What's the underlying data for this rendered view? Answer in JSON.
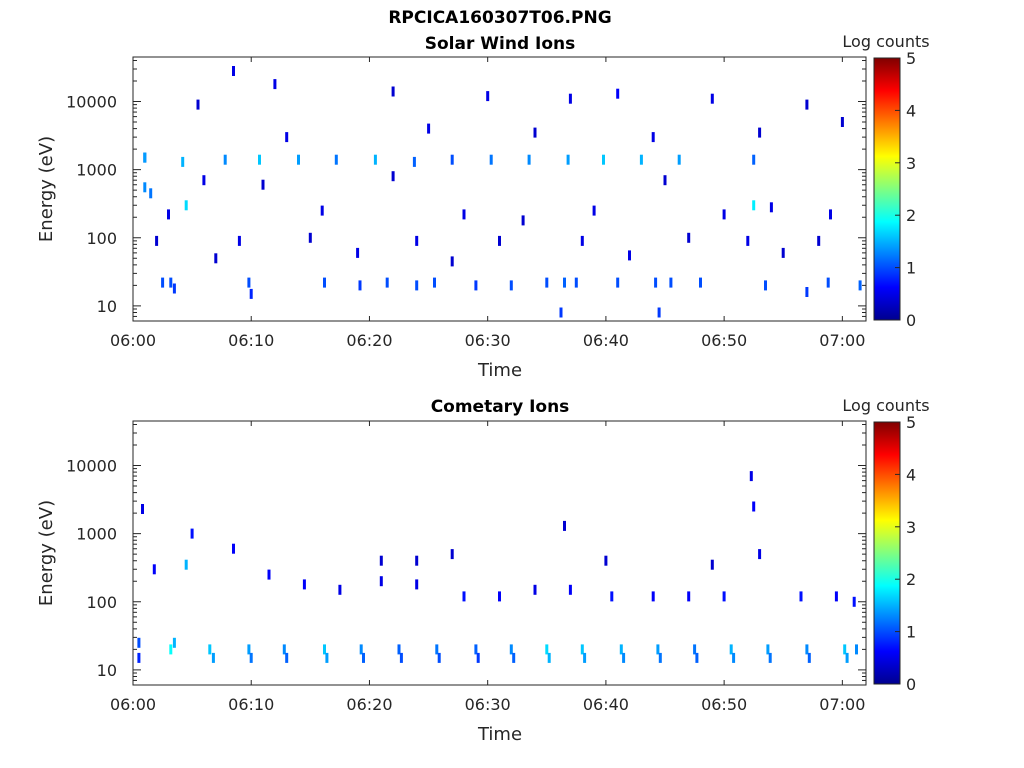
{
  "figure_title": "RPCICA160307T06.PNG",
  "chart_data": [
    {
      "type": "heatmap",
      "title": "Solar Wind Ions",
      "xlabel": "Time",
      "ylabel": "Energy (eV)",
      "x_unit": "minutes after 06:00",
      "xlim": [
        0,
        62
      ],
      "x_ticks": [
        0,
        10,
        20,
        30,
        40,
        50,
        60
      ],
      "x_tick_labels": [
        "06:00",
        "06:10",
        "06:20",
        "06:30",
        "06:40",
        "06:50",
        "07:00"
      ],
      "y_scale": "log",
      "ylim": [
        6,
        45000
      ],
      "y_ticks": [
        10,
        100,
        1000,
        10000
      ],
      "y_tick_labels": [
        "10",
        "100",
        "1000",
        "10000"
      ],
      "colorbar": {
        "label": "Log counts",
        "range": [
          0,
          5
        ],
        "ticks": [
          0,
          1,
          2,
          3,
          4,
          5
        ],
        "tick_labels": [
          "0",
          "1",
          "2",
          "3",
          "4",
          "5"
        ],
        "colormap": "jet"
      },
      "grid": false,
      "points": [
        [
          1,
          1500,
          1.0
        ],
        [
          1,
          1500,
          1.4
        ],
        [
          1,
          550,
          1.3
        ],
        [
          1.5,
          450,
          1.2
        ],
        [
          4.2,
          1300,
          1.5
        ],
        [
          4.5,
          300,
          1.7
        ],
        [
          7.8,
          1400,
          1.3
        ],
        [
          10.7,
          1400,
          1.6
        ],
        [
          14,
          1400,
          1.4
        ],
        [
          17.2,
          1400,
          1.2
        ],
        [
          20.5,
          1400,
          1.5
        ],
        [
          23.8,
          1300,
          1.1
        ],
        [
          27,
          1400,
          1.0
        ],
        [
          30.3,
          1400,
          1.2
        ],
        [
          33.5,
          1400,
          1.3
        ],
        [
          36.8,
          1400,
          1.4
        ],
        [
          39.8,
          1400,
          1.6
        ],
        [
          43,
          1400,
          1.5
        ],
        [
          46.2,
          1400,
          1.4
        ],
        [
          52.5,
          1400,
          1.1
        ],
        [
          52.5,
          300,
          1.8
        ],
        [
          2.5,
          22,
          1.0
        ],
        [
          3.2,
          22,
          1.0
        ],
        [
          3.5,
          18,
          0.9
        ],
        [
          9.8,
          22,
          1.0
        ],
        [
          10,
          15,
          0.8
        ],
        [
          16.2,
          22,
          1.0
        ],
        [
          19.2,
          20,
          0.9
        ],
        [
          21.5,
          22,
          1.0
        ],
        [
          24,
          20,
          1.0
        ],
        [
          25.5,
          22,
          1.0
        ],
        [
          29,
          20,
          0.9
        ],
        [
          32,
          20,
          1.0
        ],
        [
          35,
          22,
          1.0
        ],
        [
          36.5,
          22,
          1.1
        ],
        [
          37.5,
          22,
          1.0
        ],
        [
          41,
          22,
          1.0
        ],
        [
          44.2,
          22,
          1.0
        ],
        [
          45.5,
          22,
          1.0
        ],
        [
          48,
          22,
          1.0
        ],
        [
          53.5,
          20,
          1.0
        ],
        [
          57,
          16,
          0.9
        ],
        [
          58.8,
          22,
          1.0
        ],
        [
          61.5,
          20,
          1.1
        ],
        [
          36.2,
          8,
          0.9
        ],
        [
          44.5,
          8,
          0.9
        ],
        [
          5.5,
          9000,
          0.4
        ],
        [
          8.5,
          28000,
          0.5
        ],
        [
          12,
          18000,
          0.5
        ],
        [
          22,
          14000,
          0.4
        ],
        [
          30,
          12000,
          0.5
        ],
        [
          37,
          11000,
          0.5
        ],
        [
          41,
          13000,
          0.6
        ],
        [
          49,
          11000,
          0.5
        ],
        [
          57,
          9000,
          0.4
        ],
        [
          60,
          5000,
          0.4
        ],
        [
          13,
          3000,
          0.5
        ],
        [
          25,
          4000,
          0.5
        ],
        [
          34,
          3500,
          0.4
        ],
        [
          44,
          3000,
          0.5
        ],
        [
          53,
          3500,
          0.4
        ],
        [
          3,
          220,
          0.5
        ],
        [
          6,
          700,
          0.5
        ],
        [
          11,
          600,
          0.4
        ],
        [
          16,
          250,
          0.5
        ],
        [
          22,
          800,
          0.4
        ],
        [
          28,
          220,
          0.5
        ],
        [
          33,
          180,
          0.4
        ],
        [
          39,
          250,
          0.5
        ],
        [
          45,
          700,
          0.4
        ],
        [
          50,
          220,
          0.5
        ],
        [
          54,
          280,
          0.5
        ],
        [
          59,
          220,
          0.5
        ],
        [
          2,
          90,
          0.4
        ],
        [
          9,
          90,
          0.5
        ],
        [
          15,
          100,
          0.4
        ],
        [
          24,
          90,
          0.5
        ],
        [
          31,
          90,
          0.4
        ],
        [
          38,
          90,
          0.5
        ],
        [
          47,
          100,
          0.4
        ],
        [
          52,
          90,
          0.5
        ],
        [
          58,
          90,
          0.4
        ],
        [
          7,
          50,
          0.4
        ],
        [
          19,
          60,
          0.5
        ],
        [
          27,
          45,
          0.4
        ],
        [
          42,
          55,
          0.5
        ],
        [
          55,
          60,
          0.4
        ]
      ]
    },
    {
      "type": "heatmap",
      "title": "Cometary Ions",
      "xlabel": "Time",
      "ylabel": "Energy (eV)",
      "x_unit": "minutes after 06:00",
      "xlim": [
        0,
        62
      ],
      "x_ticks": [
        0,
        10,
        20,
        30,
        40,
        50,
        60
      ],
      "x_tick_labels": [
        "06:00",
        "06:10",
        "06:20",
        "06:30",
        "06:40",
        "06:50",
        "07:00"
      ],
      "y_scale": "log",
      "ylim": [
        6,
        45000
      ],
      "y_ticks": [
        10,
        100,
        1000,
        10000
      ],
      "y_tick_labels": [
        "10",
        "100",
        "1000",
        "10000"
      ],
      "colorbar": {
        "label": "Log counts",
        "range": [
          0,
          5
        ],
        "ticks": [
          0,
          1,
          2,
          3,
          4,
          5
        ],
        "tick_labels": [
          "0",
          "1",
          "2",
          "3",
          "4",
          "5"
        ],
        "colormap": "jet"
      },
      "grid": false,
      "points": [
        [
          0.5,
          25,
          1.0
        ],
        [
          0.5,
          15,
          0.8
        ],
        [
          3.2,
          20,
          1.9
        ],
        [
          3.5,
          25,
          1.5
        ],
        [
          6.5,
          20,
          1.6
        ],
        [
          6.8,
          15,
          1.4
        ],
        [
          9.8,
          20,
          1.4
        ],
        [
          10,
          15,
          1.2
        ],
        [
          12.8,
          20,
          1.3
        ],
        [
          13,
          15,
          1.1
        ],
        [
          16.2,
          20,
          1.6
        ],
        [
          16.4,
          15,
          1.4
        ],
        [
          19.3,
          20,
          1.3
        ],
        [
          19.5,
          15,
          1.1
        ],
        [
          22.5,
          20,
          1.1
        ],
        [
          22.7,
          15,
          1.0
        ],
        [
          25.7,
          20,
          1.2
        ],
        [
          25.9,
          15,
          1.0
        ],
        [
          29,
          20,
          1.1
        ],
        [
          29.2,
          15,
          0.9
        ],
        [
          32,
          20,
          1.3
        ],
        [
          32.2,
          15,
          1.1
        ],
        [
          35,
          20,
          1.7
        ],
        [
          35.2,
          15,
          1.5
        ],
        [
          38,
          20,
          1.6
        ],
        [
          38.2,
          15,
          1.4
        ],
        [
          41.3,
          20,
          1.5
        ],
        [
          41.5,
          15,
          1.3
        ],
        [
          44.4,
          20,
          1.4
        ],
        [
          44.6,
          15,
          1.2
        ],
        [
          47.5,
          20,
          1.2
        ],
        [
          47.7,
          15,
          1.1
        ],
        [
          50.6,
          20,
          1.5
        ],
        [
          50.8,
          15,
          1.3
        ],
        [
          53.7,
          20,
          1.4
        ],
        [
          53.9,
          15,
          1.2
        ],
        [
          57,
          20,
          1.3
        ],
        [
          57.2,
          15,
          1.1
        ],
        [
          60.2,
          20,
          1.6
        ],
        [
          60.4,
          15,
          1.4
        ],
        [
          61.2,
          20,
          1.3
        ],
        [
          1.8,
          300,
          0.6
        ],
        [
          4.5,
          350,
          1.5
        ],
        [
          5,
          1000,
          0.7
        ],
        [
          8.5,
          600,
          0.6
        ],
        [
          11.5,
          250,
          0.6
        ],
        [
          14.5,
          180,
          0.6
        ],
        [
          17.5,
          150,
          0.5
        ],
        [
          21,
          200,
          0.5
        ],
        [
          24,
          180,
          0.5
        ],
        [
          28,
          120,
          0.7
        ],
        [
          31,
          120,
          0.6
        ],
        [
          34,
          150,
          0.5
        ],
        [
          37,
          150,
          0.6
        ],
        [
          40.5,
          120,
          0.7
        ],
        [
          44,
          120,
          0.6
        ],
        [
          47,
          120,
          0.6
        ],
        [
          50,
          120,
          0.7
        ],
        [
          52.3,
          7000,
          0.5
        ],
        [
          52.5,
          2500,
          0.6
        ],
        [
          53,
          500,
          0.5
        ],
        [
          56.5,
          120,
          0.7
        ],
        [
          59.5,
          120,
          0.6
        ],
        [
          61,
          100,
          0.7
        ],
        [
          36.5,
          1300,
          0.4
        ],
        [
          0.8,
          2300,
          0.5
        ],
        [
          21,
          400,
          0.4
        ],
        [
          24,
          400,
          0.4
        ],
        [
          27,
          500,
          0.4
        ],
        [
          40,
          400,
          0.4
        ],
        [
          49,
          350,
          0.4
        ]
      ]
    }
  ]
}
